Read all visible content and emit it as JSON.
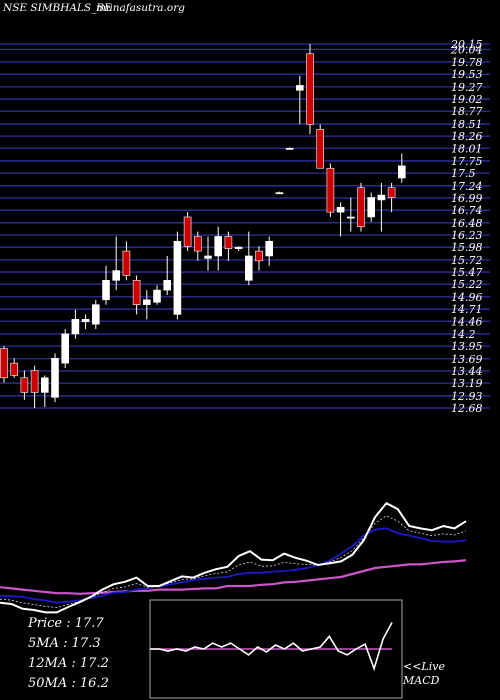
{
  "header": {
    "symbol_text": "NSE SIMBHALS_BE",
    "site_text": "munafasutra.org"
  },
  "stats": [
    {
      "label": "Price",
      "value": "17.7"
    },
    {
      "label": "5MA",
      "value": "17.3"
    },
    {
      "label": "12MA",
      "value": "17.2"
    },
    {
      "label": "50MA",
      "value": "16.2"
    }
  ],
  "macd_panel": {
    "live_label": "<<Live",
    "name_label": "MACD"
  },
  "colors": {
    "up": "#ffffff",
    "down": "#cc0000",
    "grid": "#3030a0",
    "ma_short": "#ffffff",
    "ma_mid": "#1a1acc",
    "ma_long": "#cc55cc",
    "macd": "#ffffff",
    "signal": "#cc55cc"
  },
  "chart_data": {
    "type": "candlestick",
    "y_ticks": [
      "20.15",
      "20.04",
      "19.78",
      "19.53",
      "19.27",
      "19.02",
      "18.77",
      "18.51",
      "18.26",
      "18.01",
      "17.75",
      "17.5",
      "17.24",
      "16.99",
      "16.74",
      "16.48",
      "16.23",
      "15.98",
      "15.72",
      "15.47",
      "15.22",
      "14.96",
      "14.71",
      "14.46",
      "14.2",
      "13.95",
      "13.69",
      "13.44",
      "13.19",
      "12.93",
      "12.68"
    ],
    "ylim": [
      12.68,
      20.15
    ],
    "candles": [
      {
        "o": 13.9,
        "h": 13.95,
        "l": 13.2,
        "c": 13.3
      },
      {
        "o": 13.6,
        "h": 13.7,
        "l": 13.3,
        "c": 13.35
      },
      {
        "o": 13.3,
        "h": 13.45,
        "l": 12.85,
        "c": 13.0
      },
      {
        "o": 13.45,
        "h": 13.55,
        "l": 12.68,
        "c": 13.0
      },
      {
        "o": 13.0,
        "h": 13.35,
        "l": 12.7,
        "c": 13.3
      },
      {
        "o": 12.9,
        "h": 13.8,
        "l": 12.8,
        "c": 13.7
      },
      {
        "o": 13.6,
        "h": 14.3,
        "l": 13.5,
        "c": 14.2
      },
      {
        "o": 14.2,
        "h": 14.7,
        "l": 14.1,
        "c": 14.5
      },
      {
        "o": 14.45,
        "h": 14.6,
        "l": 14.3,
        "c": 14.5
      },
      {
        "o": 14.4,
        "h": 14.9,
        "l": 14.3,
        "c": 14.8
      },
      {
        "o": 14.9,
        "h": 15.6,
        "l": 14.8,
        "c": 15.3
      },
      {
        "o": 15.3,
        "h": 16.2,
        "l": 15.1,
        "c": 15.5
      },
      {
        "o": 15.9,
        "h": 16.1,
        "l": 15.3,
        "c": 15.4
      },
      {
        "o": 15.3,
        "h": 15.4,
        "l": 14.6,
        "c": 14.8
      },
      {
        "o": 14.8,
        "h": 15.1,
        "l": 14.5,
        "c": 14.9
      },
      {
        "o": 14.85,
        "h": 15.2,
        "l": 14.8,
        "c": 15.1
      },
      {
        "o": 15.1,
        "h": 15.8,
        "l": 15.0,
        "c": 15.3
      },
      {
        "o": 14.6,
        "h": 16.3,
        "l": 14.5,
        "c": 16.1
      },
      {
        "o": 16.6,
        "h": 16.7,
        "l": 15.9,
        "c": 16.0
      },
      {
        "o": 16.2,
        "h": 16.3,
        "l": 15.7,
        "c": 15.9
      },
      {
        "o": 15.75,
        "h": 16.2,
        "l": 15.5,
        "c": 15.8
      },
      {
        "o": 15.8,
        "h": 16.4,
        "l": 15.5,
        "c": 16.2
      },
      {
        "o": 16.2,
        "h": 16.3,
        "l": 15.7,
        "c": 15.95
      },
      {
        "o": 15.95,
        "h": 16.0,
        "l": 15.9,
        "c": 15.98
      },
      {
        "o": 15.3,
        "h": 16.3,
        "l": 15.2,
        "c": 15.8
      },
      {
        "o": 15.9,
        "h": 16.0,
        "l": 15.5,
        "c": 15.7
      },
      {
        "o": 15.8,
        "h": 16.2,
        "l": 15.6,
        "c": 16.1
      },
      {
        "o": 17.1,
        "h": 17.12,
        "l": 17.08,
        "c": 17.1
      },
      {
        "o": 18.01,
        "h": 18.03,
        "l": 17.99,
        "c": 18.01
      },
      {
        "o": 19.2,
        "h": 19.5,
        "l": 18.5,
        "c": 19.3
      },
      {
        "o": 19.95,
        "h": 20.15,
        "l": 18.3,
        "c": 18.5
      },
      {
        "o": 18.4,
        "h": 18.5,
        "l": 17.6,
        "c": 17.6
      },
      {
        "o": 17.6,
        "h": 17.7,
        "l": 16.6,
        "c": 16.7
      },
      {
        "o": 16.7,
        "h": 16.9,
        "l": 16.2,
        "c": 16.8
      },
      {
        "o": 16.6,
        "h": 17.0,
        "l": 16.3,
        "c": 16.6
      },
      {
        "o": 17.2,
        "h": 17.3,
        "l": 16.3,
        "c": 16.4
      },
      {
        "o": 16.6,
        "h": 17.1,
        "l": 16.5,
        "c": 17.0
      },
      {
        "o": 16.95,
        "h": 17.3,
        "l": 16.3,
        "c": 17.05
      },
      {
        "o": 17.2,
        "h": 17.3,
        "l": 16.7,
        "c": 17.0
      },
      {
        "o": 17.4,
        "h": 17.9,
        "l": 17.3,
        "c": 17.65
      }
    ],
    "ma_panel": {
      "ylim": [
        0,
        1
      ],
      "ma_short": [
        0.62,
        0.6,
        0.52,
        0.5,
        0.46,
        0.46,
        0.55,
        0.63,
        0.72,
        0.84,
        0.93,
        0.97,
        1.04,
        0.9,
        0.9,
        0.98,
        1.06,
        1.04,
        1.12,
        1.18,
        1.22,
        1.4,
        1.48,
        1.34,
        1.33,
        1.44,
        1.37,
        1.32,
        1.25,
        1.28,
        1.31,
        1.42,
        1.66,
        2.05,
        2.28,
        2.18,
        1.9,
        1.86,
        1.83,
        1.9,
        1.86,
        1.98
      ],
      "ma_mid": [
        0.74,
        0.73,
        0.72,
        0.68,
        0.66,
        0.62,
        0.64,
        0.66,
        0.7,
        0.74,
        0.79,
        0.8,
        0.84,
        0.86,
        0.89,
        0.93,
        0.96,
        1.0,
        1.02,
        1.04,
        1.05,
        1.1,
        1.12,
        1.12,
        1.14,
        1.15,
        1.17,
        1.2,
        1.25,
        1.32,
        1.44,
        1.56,
        1.74,
        1.84,
        1.86,
        1.78,
        1.74,
        1.7,
        1.65,
        1.64,
        1.64,
        1.66
      ],
      "ma_long": [
        0.88,
        0.86,
        0.84,
        0.82,
        0.8,
        0.78,
        0.78,
        0.77,
        0.78,
        0.79,
        0.8,
        0.81,
        0.82,
        0.82,
        0.84,
        0.84,
        0.84,
        0.85,
        0.86,
        0.86,
        0.9,
        0.9,
        0.9,
        0.92,
        0.93,
        0.96,
        0.97,
        0.99,
        1.01,
        1.03,
        1.05,
        1.1,
        1.15,
        1.2,
        1.22,
        1.24,
        1.26,
        1.26,
        1.28,
        1.3,
        1.31,
        1.33
      ]
    },
    "macd_panel": {
      "macd": [
        0.5,
        0.5,
        0.48,
        0.5,
        0.48,
        0.52,
        0.5,
        0.56,
        0.52,
        0.56,
        0.5,
        0.44,
        0.52,
        0.47,
        0.54,
        0.5,
        0.56,
        0.48,
        0.5,
        0.52,
        0.63,
        0.48,
        0.44,
        0.5,
        0.55,
        0.3,
        0.6,
        0.77
      ],
      "signal_level": 0.5
    }
  }
}
